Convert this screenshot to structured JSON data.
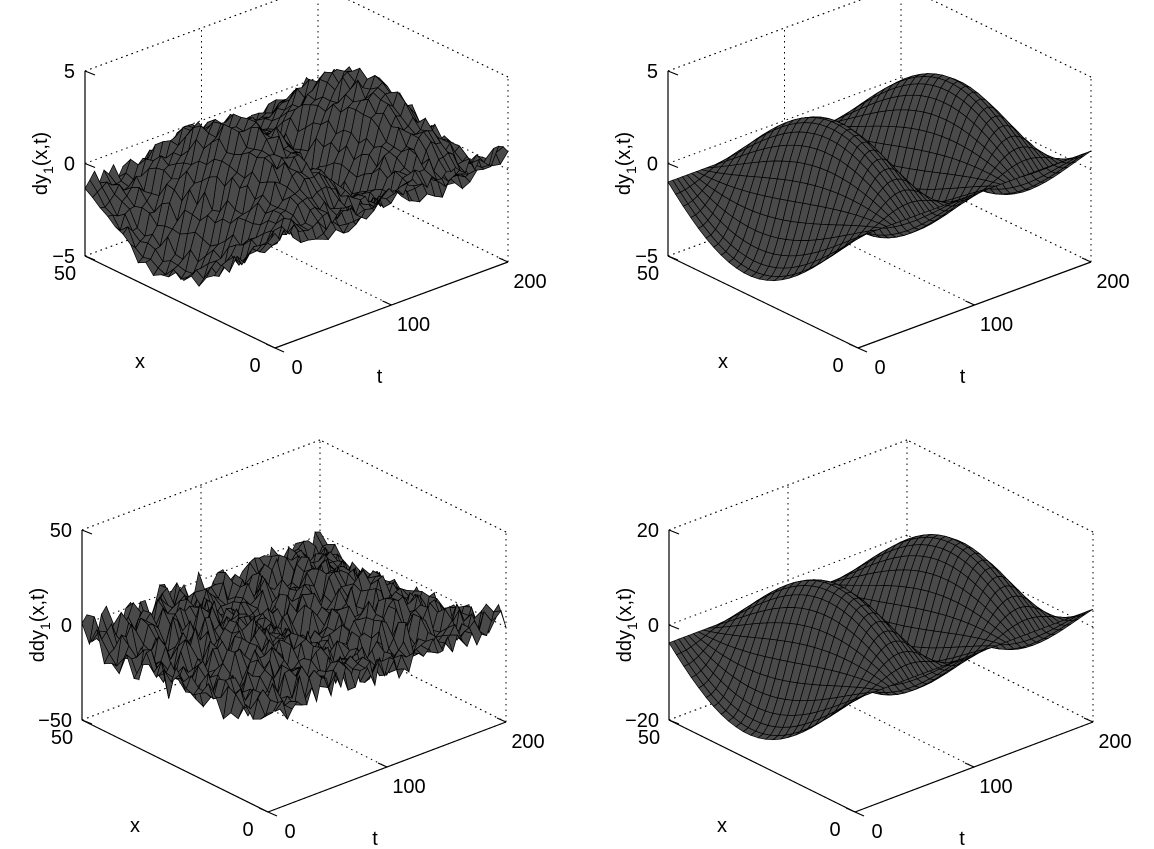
{
  "chart_data": [
    {
      "type": "surface",
      "panel": "top-left",
      "title": "",
      "xlabel": "x",
      "ylabel": "t",
      "zlabel": {
        "base": "dy",
        "sub": "1",
        "tail": "(x,t)"
      },
      "xlim": [
        0,
        50
      ],
      "ylim": [
        0,
        200
      ],
      "zlim": [
        -5,
        5
      ],
      "xticks": [
        "0",
        "50"
      ],
      "yticks": [
        "0",
        "100",
        "200"
      ],
      "zticks": [
        "-5",
        "0",
        "5"
      ],
      "grid": true,
      "mesh": {
        "nx": 26,
        "nt": 50
      },
      "profile": {
        "kind": "sine",
        "amplitude": 4,
        "periods": 2,
        "noise": 0.45
      },
      "surface_color": "#000000"
    },
    {
      "type": "surface",
      "panel": "top-right",
      "title": "",
      "xlabel": "x",
      "ylabel": "t",
      "zlabel": {
        "base": "dy",
        "sub": "1",
        "tail": "(x,t)"
      },
      "xlim": [
        0,
        50
      ],
      "ylim": [
        0,
        200
      ],
      "zlim": [
        -5,
        5
      ],
      "xticks": [
        "0",
        "50"
      ],
      "yticks": [
        "0",
        "100",
        "200"
      ],
      "zticks": [
        "-5",
        "0",
        "5"
      ],
      "grid": true,
      "mesh": {
        "nx": 26,
        "nt": 50
      },
      "profile": {
        "kind": "sine",
        "amplitude": 4,
        "periods": 2,
        "noise": 0
      },
      "surface_color": "#000000"
    },
    {
      "type": "surface",
      "panel": "bottom-left",
      "title": "",
      "xlabel": "x",
      "ylabel": "t",
      "zlabel": {
        "base": "ddy",
        "sub": "1",
        "tail": "(x,t)"
      },
      "xlim": [
        0,
        50
      ],
      "ylim": [
        0,
        200
      ],
      "zlim": [
        -50,
        50
      ],
      "xticks": [
        "0",
        "50"
      ],
      "yticks": [
        "0",
        "100",
        "200"
      ],
      "zticks": [
        "-50",
        "0",
        "50"
      ],
      "grid": true,
      "mesh": {
        "nx": 26,
        "nt": 50
      },
      "profile": {
        "kind": "sine",
        "amplitude": 10,
        "periods": 2,
        "noise": 9
      },
      "surface_color": "#000000"
    },
    {
      "type": "surface",
      "panel": "bottom-right",
      "title": "",
      "xlabel": "x",
      "ylabel": "t",
      "zlabel": {
        "base": "ddy",
        "sub": "1",
        "tail": "(x,t)"
      },
      "xlim": [
        0,
        50
      ],
      "ylim": [
        0,
        200
      ],
      "zlim": [
        -20,
        20
      ],
      "xticks": [
        "0",
        "50"
      ],
      "yticks": [
        "0",
        "100",
        "200"
      ],
      "zticks": [
        "-20",
        "0",
        "20"
      ],
      "grid": true,
      "mesh": {
        "nx": 26,
        "nt": 50
      },
      "profile": {
        "kind": "sine",
        "amplitude": 15,
        "periods": 2,
        "noise": 0
      },
      "surface_color": "#000000"
    }
  ]
}
